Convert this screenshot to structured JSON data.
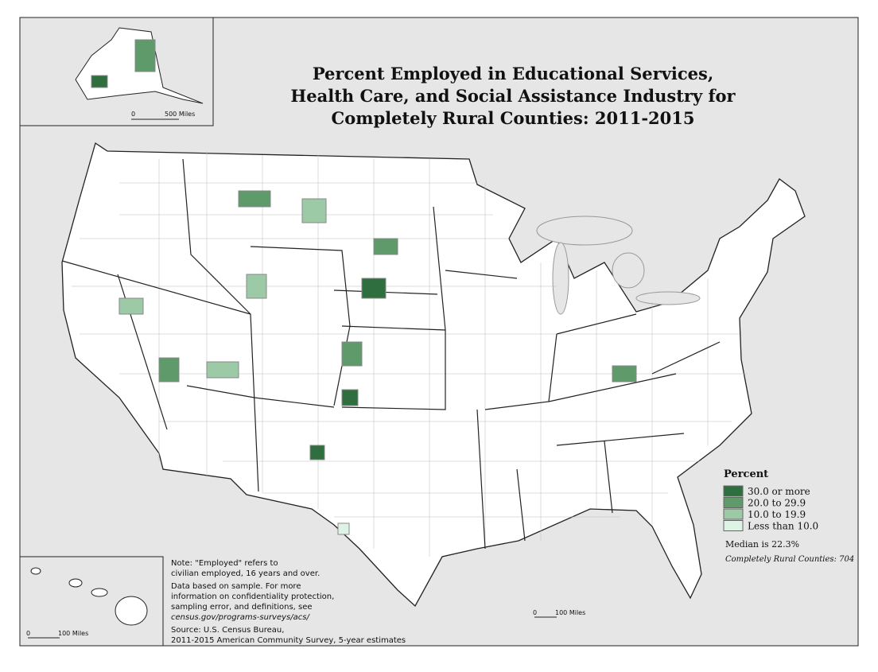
{
  "title": [
    "Percent Employed in Educational Services,",
    "Health Care, and Social Assistance Industry for",
    "Completely Rural Counties: 2011-2015"
  ],
  "legend": {
    "title": "Percent",
    "items": [
      {
        "label": "30.0 or more",
        "color": "#2f6e3e"
      },
      {
        "label": "20.0 to 29.9",
        "color": "#5e9a6a"
      },
      {
        "label": "10.0 to 19.9",
        "color": "#9dcaa6"
      },
      {
        "label": "Less than 10.0",
        "color": "#dff2e6"
      }
    ],
    "median": "Median is 22.3%",
    "count": "Completely Rural Counties: 704"
  },
  "notes": [
    "Note: \"Employed\" refers to",
    "civilian employed, 16 years and over.",
    "Data based on sample. For more",
    "information on confidentiality protection,",
    "sampling error, and definitions, see",
    "census.gov/programs-surveys/acs/",
    "Source: U.S. Census Bureau,",
    "2011-2015 American Community Survey, 5-year estimates"
  ],
  "scale_bars": {
    "alaska": [
      "0",
      "500 Miles"
    ],
    "hawaii": [
      "0",
      "100 Miles"
    ],
    "main": [
      "0",
      "100 Miles"
    ]
  }
}
